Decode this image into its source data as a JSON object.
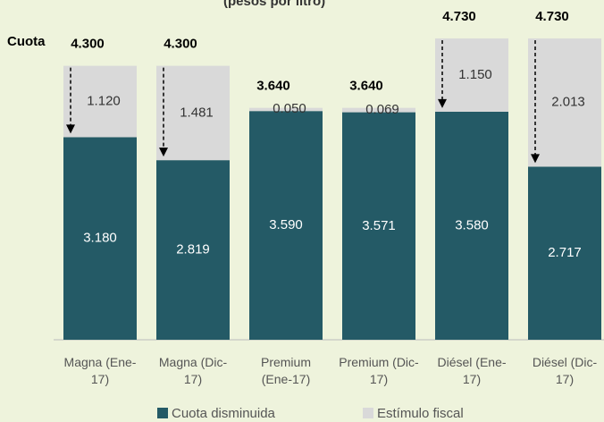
{
  "chart_data": {
    "type": "stacked_bar",
    "subtitle": "(pesos por litro)",
    "cuota_label": "Cuota",
    "categories": [
      "Magna (Ene-17)",
      "Magna (Dic-17)",
      "Premium (Ene-17)",
      "Premium (Dic-17)",
      "Diésel (Ene-17)",
      "Diésel (Dic-17)"
    ],
    "series": [
      {
        "name": "Cuota disminuida",
        "color": "#245a66",
        "values": [
          3.18,
          2.819,
          3.59,
          3.571,
          3.58,
          2.717
        ],
        "value_labels": [
          "3.180",
          "2.819",
          "3.590",
          "3.571",
          "3.580",
          "2.717"
        ]
      },
      {
        "name": "Estímulo fiscal",
        "color": "#d9d9d9",
        "values": [
          1.12,
          1.481,
          0.05,
          0.069,
          1.15,
          2.013
        ],
        "value_labels": [
          "1.120",
          "1.481",
          "0.050",
          "0.069",
          "1.150",
          "2.013"
        ]
      }
    ],
    "totals": {
      "values": [
        4.3,
        4.3,
        3.64,
        3.64,
        4.73,
        4.73
      ],
      "value_labels": [
        "4.300",
        "4.300",
        "3.640",
        "3.640",
        "4.730",
        "4.730"
      ]
    },
    "ylim": [
      0,
      4.8
    ]
  }
}
